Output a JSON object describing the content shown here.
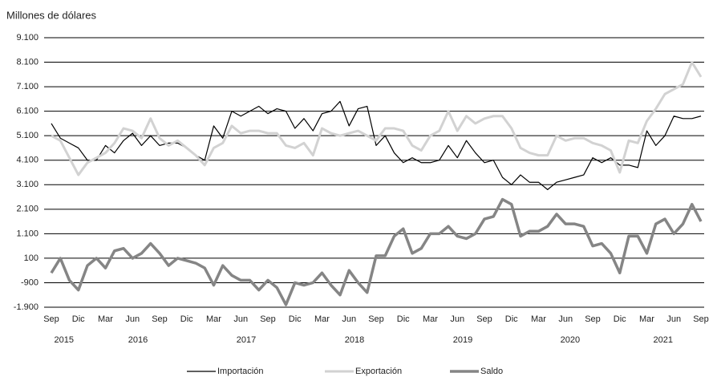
{
  "chart_data": {
    "type": "line",
    "y_axis_label": "Millones de dólares",
    "categories": [
      "Sep",
      null,
      null,
      "Dic",
      null,
      null,
      "Mar",
      null,
      null,
      "Jun",
      null,
      null,
      "Sep",
      null,
      null,
      "Dic",
      null,
      null,
      "Mar",
      null,
      null,
      "Jun",
      null,
      null,
      "Sep",
      null,
      null,
      "Dic",
      null,
      null,
      "Mar",
      null,
      null,
      "Jun",
      null,
      null,
      "Sep",
      null,
      null,
      "Dic",
      null,
      null,
      "Mar",
      null,
      null,
      "Jun",
      null,
      null,
      "Sep",
      null,
      null,
      "Dic",
      null,
      null,
      "Mar",
      null,
      null,
      "Jun",
      null,
      null,
      "Sep",
      null,
      null,
      "Dic",
      null,
      null,
      "Mar",
      null,
      null,
      "Jun",
      null,
      null,
      "Sep"
    ],
    "years": [
      "2015",
      "2016",
      "2017",
      "2018",
      "2019",
      "2020",
      "2021"
    ],
    "series": [
      {
        "name": "Importación",
        "color": "#000000",
        "values": [
          5600,
          5000,
          4800,
          4600,
          4100,
          4100,
          4700,
          4400,
          4900,
          5200,
          4700,
          5100,
          4700,
          4800,
          4800,
          4600,
          4300,
          4100,
          5500,
          5000,
          6100,
          5900,
          6100,
          6300,
          6000,
          6200,
          6100,
          5400,
          5800,
          5300,
          6000,
          6100,
          6500,
          5500,
          6200,
          6300,
          4700,
          5100,
          4400,
          4000,
          4200,
          4000,
          4000,
          4100,
          4700,
          4200,
          4900,
          4400,
          4000,
          4100,
          3400,
          3100,
          3500,
          3200,
          3200,
          2900,
          3200,
          3300,
          3400,
          3500,
          4200,
          4000,
          4200,
          3900,
          3900,
          3800,
          5300,
          4700,
          5100,
          5900,
          5800,
          5800,
          5900
        ]
      },
      {
        "name": "Exportación",
        "color": "#d2d2d2",
        "values": [
          5100,
          4900,
          4200,
          3500,
          4000,
          4200,
          4400,
          4800,
          5400,
          5300,
          5000,
          5800,
          5000,
          4700,
          4900,
          4600,
          4300,
          3900,
          4600,
          4800,
          5500,
          5200,
          5300,
          5300,
          5200,
          5200,
          4700,
          4600,
          4800,
          4300,
          5400,
          5200,
          5100,
          5200,
          5300,
          5100,
          4900,
          5400,
          5400,
          5300,
          4700,
          4500,
          5100,
          5300,
          6100,
          5300,
          5900,
          5600,
          5800,
          5900,
          5900,
          5400,
          4600,
          4400,
          4300,
          4300,
          5100,
          4900,
          5000,
          5000,
          4800,
          4700,
          4500,
          3600,
          4900,
          4800,
          5700,
          6200,
          6800,
          7000,
          7200,
          8100,
          7500
        ]
      },
      {
        "name": "Saldo",
        "color": "#858585",
        "values": [
          -500,
          100,
          -800,
          -1200,
          -200,
          100,
          -300,
          400,
          500,
          100,
          300,
          700,
          300,
          -200,
          100,
          0,
          -100,
          -300,
          -1000,
          -200,
          -600,
          -800,
          -800,
          -1200,
          -800,
          -1100,
          -1800,
          -900,
          -1000,
          -900,
          -500,
          -1000,
          -1400,
          -400,
          -900,
          -1300,
          200,
          200,
          1000,
          1300,
          300,
          500,
          1100,
          1100,
          1400,
          1000,
          900,
          1100,
          1700,
          1800,
          2500,
          2300,
          1000,
          1200,
          1200,
          1400,
          1900,
          1500,
          1500,
          1400,
          600,
          700,
          300,
          -500,
          1000,
          1000,
          300,
          1500,
          1700,
          1100,
          1500,
          2300,
          1600
        ]
      }
    ],
    "ylim": [
      -1900,
      9100
    ],
    "yticks": [
      {
        "value": -1900,
        "label": "-1.900"
      },
      -900,
      100,
      {
        "value": 1100,
        "label": "1.100"
      },
      {
        "value": 2100,
        "label": "2.100"
      },
      {
        "value": 3100,
        "label": "3.100"
      },
      {
        "value": 4100,
        "label": "4.100"
      },
      {
        "value": 5100,
        "label": "5.100"
      },
      {
        "value": 6100,
        "label": "6.100"
      },
      {
        "value": 7100,
        "label": "7.100"
      },
      {
        "value": 8100,
        "label": "8.100"
      },
      {
        "value": 9100,
        "label": "9.100"
      }
    ],
    "grid": true,
    "legend": "bottom"
  }
}
